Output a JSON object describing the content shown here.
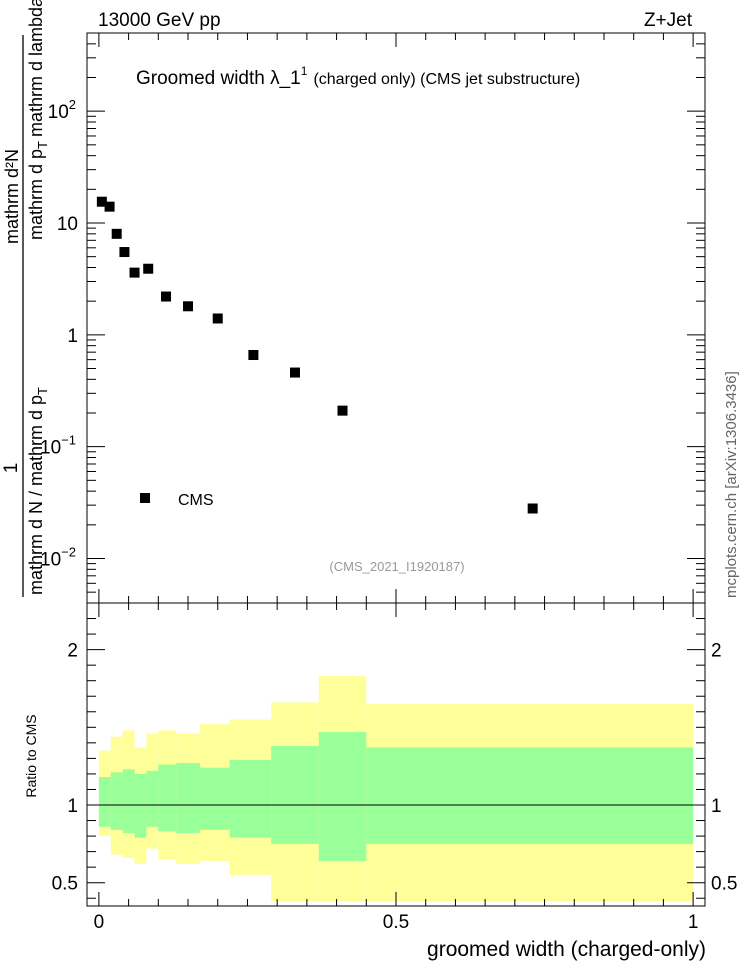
{
  "header": {
    "energy_label": "13000 GeV pp",
    "process_label": "Z+Jet",
    "side_note": "mcplots.cern.ch [arXiv:1306.3436]"
  },
  "chart_data": [
    {
      "type": "scatter",
      "panel": "main",
      "title_main": "Groomed width  λ_1",
      "title_sup": "1",
      "title_suffix": "(charged only) (CMS jet substructure)",
      "analysis_label": "(CMS_2021_I1920187)",
      "ylabel_numerator": "1",
      "ylabel_line_top": "mathrm d²N",
      "ylabel_line_mid": "mathrm d p",
      "ylabel_sub": "T",
      "ylabel_line_bot": "mathrm d lambda",
      "ylabel_denominator": "mathrm d N / mathrm d p",
      "ylabel_den_sub": "T",
      "yscale": "log",
      "ylim": [
        0.004,
        500
      ],
      "xlim": [
        -0.02,
        1.02
      ],
      "y_ticks": [
        {
          "value": 100,
          "base": "10",
          "exp": "2"
        },
        {
          "value": 10,
          "base": "10",
          "exp": ""
        },
        {
          "value": 1,
          "base": "1",
          "exp": ""
        },
        {
          "value": 0.1,
          "base": "10",
          "exp": "−1"
        },
        {
          "value": 0.01,
          "base": "10",
          "exp": "−2"
        }
      ],
      "legend": {
        "label": "CMS",
        "position": "lower-left"
      },
      "series": [
        {
          "name": "CMS",
          "x": [
            0.005,
            0.018,
            0.03,
            0.043,
            0.06,
            0.083,
            0.113,
            0.15,
            0.2,
            0.26,
            0.33,
            0.41,
            0.73
          ],
          "y": [
            15.5,
            14.0,
            8.0,
            5.5,
            3.6,
            3.9,
            2.2,
            1.8,
            1.4,
            0.66,
            0.46,
            0.21,
            0.028
          ]
        }
      ]
    },
    {
      "type": "area",
      "panel": "ratio",
      "ylabel": "Ratio to CMS",
      "xlabel": "groomed width (charged-only)",
      "xlim": [
        -0.02,
        1.02
      ],
      "ylim": [
        0.35,
        2.3
      ],
      "x_ticks": [
        "0",
        "0.5",
        "1"
      ],
      "y_ticks": [
        "0.5",
        "1",
        "2"
      ],
      "bands": {
        "edges": [
          0.0,
          0.02,
          0.04,
          0.06,
          0.08,
          0.1,
          0.13,
          0.17,
          0.22,
          0.29,
          0.37,
          0.45,
          1.0
        ],
        "yellow_low": [
          0.8,
          0.68,
          0.66,
          0.62,
          0.72,
          0.65,
          0.62,
          0.64,
          0.55,
          0.38,
          0.38,
          0.38
        ],
        "yellow_high": [
          1.35,
          1.44,
          1.48,
          1.37,
          1.46,
          1.48,
          1.46,
          1.52,
          1.55,
          1.66,
          1.83,
          1.65
        ],
        "green_low": [
          0.86,
          0.84,
          0.82,
          0.79,
          0.86,
          0.83,
          0.82,
          0.84,
          0.79,
          0.75,
          0.64,
          0.75
        ],
        "green_high": [
          1.18,
          1.21,
          1.23,
          1.2,
          1.22,
          1.26,
          1.27,
          1.24,
          1.29,
          1.38,
          1.47,
          1.37
        ]
      },
      "reference_line": 1.0,
      "colors": {
        "yellow": "#ffff99",
        "green": "#99ff99",
        "marker": "#000000"
      }
    }
  ]
}
